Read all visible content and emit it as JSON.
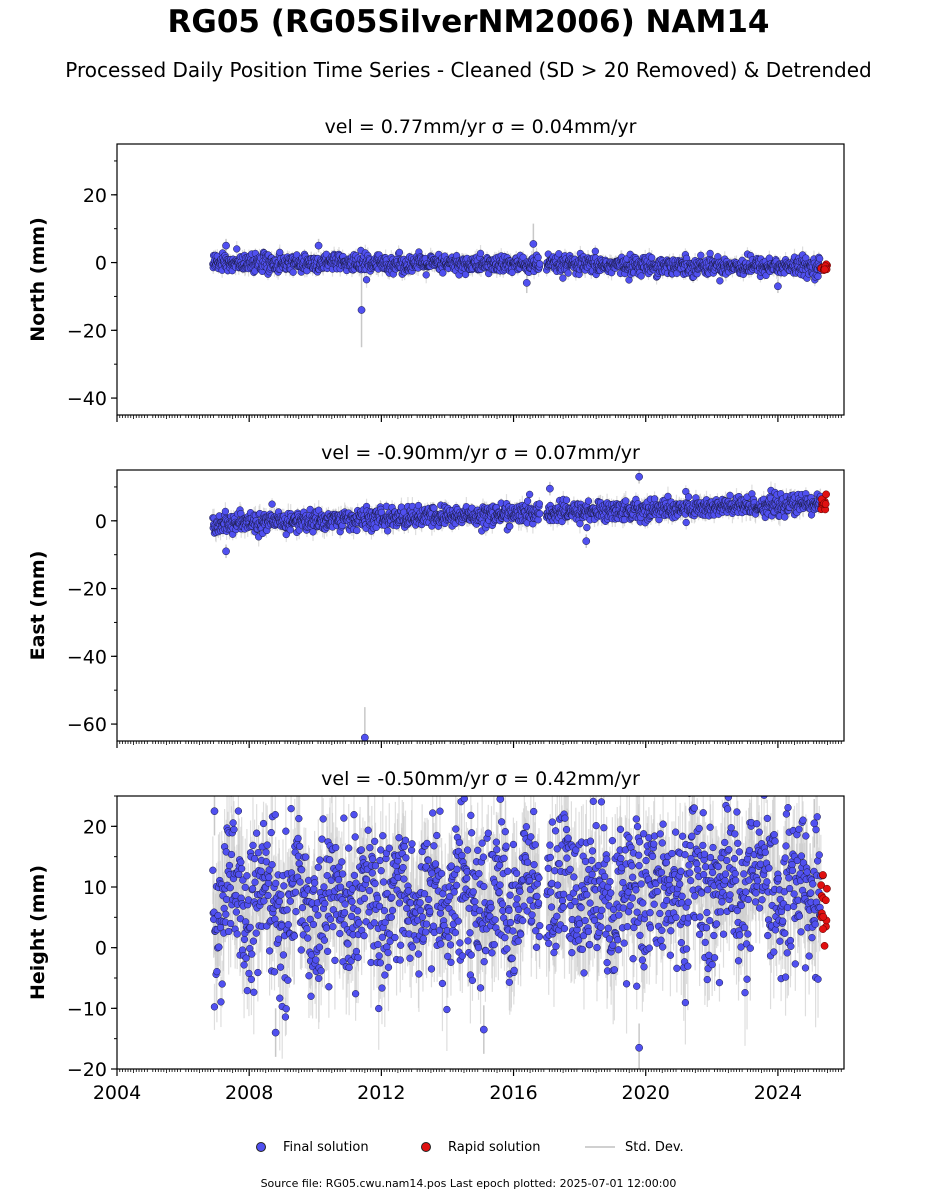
{
  "title": "RG05 (RG05SilverNM2006) NAM14",
  "subtitle": "Processed Daily Position Time Series - Cleaned (SD > 20 Removed) & Detrended",
  "legend": {
    "final_label": "Final solution",
    "rapid_label": "Rapid solution",
    "sd_label": "Std. Dev."
  },
  "footer": "Source file: RG05.cwu.nam14.pos  Last epoch plotted: 2025-07-01 12:00:00",
  "colors": {
    "final": "#5050f0",
    "rapid": "#e01010",
    "sd": "#c8c8c8"
  },
  "chart_data": [
    {
      "type": "scatter",
      "title": "vel = 0.77mm/yr   σ = 0.04mm/yr",
      "ylabel": "North (mm)",
      "xlim": [
        2004,
        2026
      ],
      "ylim": [
        -45,
        35
      ],
      "yticks": [
        20,
        0,
        -20,
        -40
      ],
      "xticks": [
        2004,
        2008,
        2012,
        2016,
        2020,
        2024
      ],
      "show_xticklabels": false,
      "series": [
        {
          "name": "Final solution",
          "x_range": [
            2006.9,
            2025.3
          ],
          "center": 0,
          "trend": [
            0,
            -1.2
          ],
          "spread": 1.3,
          "sd_range": [
            0.8,
            2.5
          ]
        },
        {
          "name": "Rapid solution",
          "x_range": [
            2025.3,
            2025.5
          ],
          "center": -1.5,
          "spread": 0.6
        }
      ],
      "outliers": [
        {
          "x": 2011.4,
          "y": -14,
          "sd": 11
        },
        {
          "x": 2016.6,
          "y": 5.5,
          "sd": 6
        },
        {
          "x": 2016.4,
          "y": -6,
          "sd": 3
        },
        {
          "x": 2007.3,
          "y": 5,
          "sd": 2
        },
        {
          "x": 2010.1,
          "y": 5,
          "sd": 2
        },
        {
          "x": 2024.0,
          "y": -7,
          "sd": 2
        }
      ]
    },
    {
      "type": "scatter",
      "title": "vel = -0.90mm/yr   σ = 0.07mm/yr",
      "ylabel": "East (mm)",
      "xlim": [
        2004,
        2026
      ],
      "ylim": [
        -65,
        15
      ],
      "yticks": [
        0,
        -20,
        -40,
        -60
      ],
      "xticks": [
        2004,
        2008,
        2012,
        2016,
        2020,
        2024
      ],
      "show_xticklabels": false,
      "series": [
        {
          "name": "Final solution",
          "x_range": [
            2006.9,
            2025.3
          ],
          "center": 0,
          "trend": [
            -1,
            5
          ],
          "spread": 1.5,
          "sd_range": [
            0.8,
            3
          ]
        },
        {
          "name": "Rapid solution",
          "x_range": [
            2025.3,
            2025.5
          ],
          "center": 5,
          "spread": 1.2
        }
      ],
      "outliers": [
        {
          "x": 2011.5,
          "y": -64,
          "sd": 9
        },
        {
          "x": 2019.8,
          "y": 13,
          "sd": 2
        },
        {
          "x": 2017.1,
          "y": 9.5,
          "sd": 2
        },
        {
          "x": 2007.3,
          "y": -9,
          "sd": 2
        },
        {
          "x": 2018.2,
          "y": -6,
          "sd": 2
        }
      ]
    },
    {
      "type": "scatter",
      "title": "vel = -0.50mm/yr   σ = 0.42mm/yr",
      "ylabel": "Height (mm)",
      "xlim": [
        2004,
        2026
      ],
      "ylim": [
        -20,
        25
      ],
      "yticks": [
        20,
        10,
        0,
        -10,
        -20
      ],
      "xticks": [
        2004,
        2008,
        2012,
        2016,
        2020,
        2024
      ],
      "xticklabels": [
        "2004",
        "2008",
        "2012",
        "2016",
        "2020",
        "2024"
      ],
      "show_xticklabels": true,
      "series": [
        {
          "name": "Final solution",
          "x_range": [
            2006.9,
            2025.3
          ],
          "center": 4,
          "trend": [
            3,
            6
          ],
          "spread": 6,
          "seasonal": 3,
          "sd_range": [
            3,
            9
          ]
        },
        {
          "name": "Rapid solution",
          "x_range": [
            2025.3,
            2025.5
          ],
          "center": 6,
          "spread": 4
        }
      ],
      "outliers": [
        {
          "x": 2006.95,
          "y": 22.5,
          "sd": 4
        },
        {
          "x": 2015.6,
          "y": 24.5,
          "sd": 4
        },
        {
          "x": 2019.8,
          "y": -16.5,
          "sd": 4
        },
        {
          "x": 2015.1,
          "y": -13.5,
          "sd": 4
        },
        {
          "x": 2008.8,
          "y": -14,
          "sd": 4
        },
        {
          "x": 2025.1,
          "y": 20.5,
          "sd": 4
        }
      ]
    }
  ]
}
